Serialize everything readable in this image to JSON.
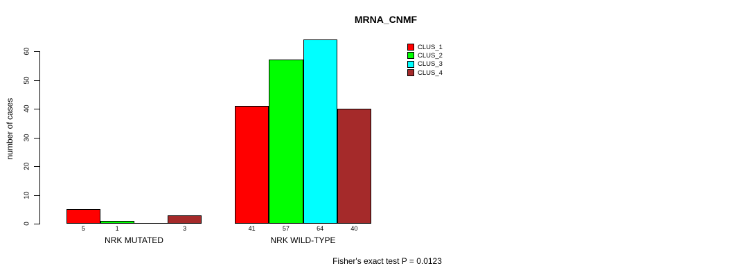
{
  "page": {
    "background_color": "#FFFFFF",
    "text_color": "#000000"
  },
  "chart_data": {
    "type": "bar",
    "title": "MRNA_CNMF",
    "ylabel": "number of cases",
    "xlabel": "",
    "subtitle": "Fisher's exact test P = 0.0123",
    "categories": [
      "NRK MUTATED",
      "NRK WILD-TYPE"
    ],
    "series": [
      {
        "name": "CLUS_1",
        "color": "#FF0000",
        "values": [
          5,
          41
        ]
      },
      {
        "name": "CLUS_2",
        "color": "#00FF00",
        "values": [
          1,
          57
        ]
      },
      {
        "name": "CLUS_3",
        "color": "#00FFFF",
        "values": [
          0,
          64
        ]
      },
      {
        "name": "CLUS_4",
        "color": "#A52A2A",
        "values": [
          3,
          40
        ]
      }
    ],
    "bar_labels": [
      [
        "5",
        "1",
        "",
        "3"
      ],
      [
        "41",
        "57",
        "64",
        "40"
      ]
    ],
    "ylim": [
      0,
      60
    ],
    "yticks": [
      0,
      10,
      20,
      30,
      40,
      50,
      60
    ],
    "legend_position": "top-right",
    "grid": false
  }
}
